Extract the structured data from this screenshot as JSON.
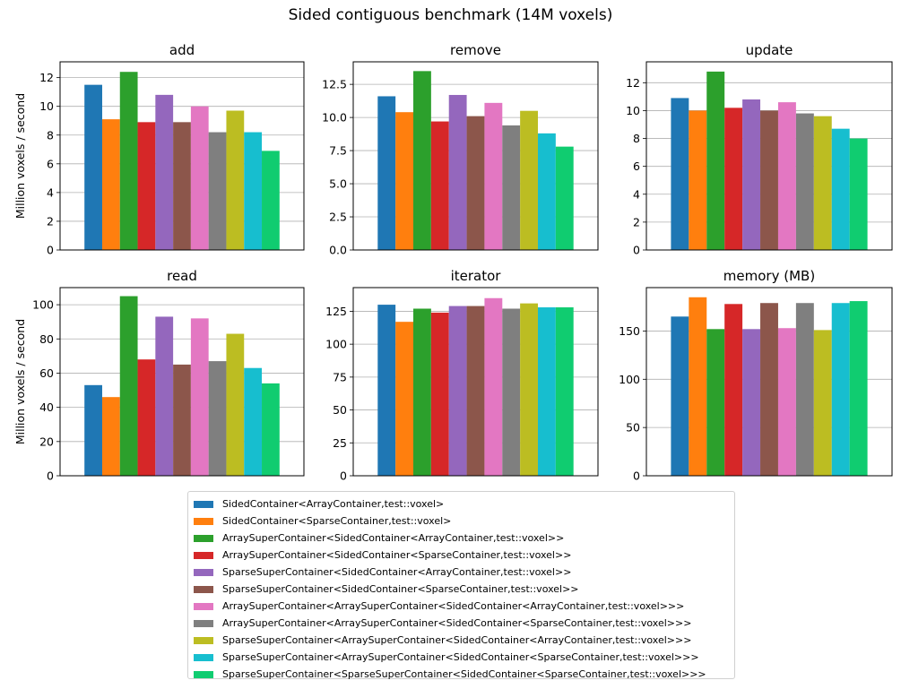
{
  "title": "Sided contiguous benchmark (14M voxels)",
  "series": [
    {
      "name": "SidedContainer<ArrayContainer,test::voxel>",
      "color": "#1f77b4"
    },
    {
      "name": "SidedContainer<SparseContainer,test::voxel>",
      "color": "#ff7f0e"
    },
    {
      "name": "ArraySuperContainer<SidedContainer<ArrayContainer,test::voxel>>",
      "color": "#2ca02c"
    },
    {
      "name": "ArraySuperContainer<SidedContainer<SparseContainer,test::voxel>>",
      "color": "#d62728"
    },
    {
      "name": "SparseSuperContainer<SidedContainer<ArrayContainer,test::voxel>>",
      "color": "#9467bd"
    },
    {
      "name": "SparseSuperContainer<SidedContainer<SparseContainer,test::voxel>>",
      "color": "#8c564b"
    },
    {
      "name": "ArraySuperContainer<ArraySuperContainer<SidedContainer<ArrayContainer,test::voxel>>>",
      "color": "#e377c2"
    },
    {
      "name": "ArraySuperContainer<ArraySuperContainer<SidedContainer<SparseContainer,test::voxel>>>",
      "color": "#7f7f7f"
    },
    {
      "name": "SparseSuperContainer<ArraySuperContainer<SidedContainer<ArrayContainer,test::voxel>>>",
      "color": "#bcbd22"
    },
    {
      "name": "SparseSuperContainer<ArraySuperContainer<SidedContainer<SparseContainer,test::voxel>>>",
      "color": "#17becf"
    },
    {
      "name": "SparseSuperContainer<SparseSuperContainer<SidedContainer<SparseContainer,test::voxel>>>",
      "color": "#10cc70"
    }
  ],
  "chart_data": [
    {
      "type": "bar",
      "title": "add",
      "ylabel": "Million voxels / second",
      "ylim": [
        0,
        13.1
      ],
      "yticks": [
        0,
        2,
        4,
        6,
        8,
        10,
        12
      ],
      "tick_labels": [
        "0",
        "2",
        "4",
        "6",
        "8",
        "10",
        "12"
      ],
      "grid": true,
      "values": [
        11.5,
        9.1,
        12.4,
        8.9,
        10.8,
        8.9,
        10.0,
        8.2,
        9.7,
        8.2,
        6.9
      ]
    },
    {
      "type": "bar",
      "title": "remove",
      "ylabel": "",
      "ylim": [
        0,
        14.2
      ],
      "yticks": [
        0,
        2.5,
        5,
        7.5,
        10,
        12.5
      ],
      "tick_labels": [
        "0.0",
        "2.5",
        "5.0",
        "7.5",
        "10.0",
        "12.5"
      ],
      "grid": true,
      "values": [
        11.6,
        10.4,
        13.5,
        9.7,
        11.7,
        10.1,
        11.1,
        9.4,
        10.5,
        8.8,
        7.8
      ]
    },
    {
      "type": "bar",
      "title": "update",
      "ylabel": "",
      "ylim": [
        0,
        13.5
      ],
      "yticks": [
        0,
        2,
        4,
        6,
        8,
        10,
        12
      ],
      "tick_labels": [
        "0",
        "2",
        "4",
        "6",
        "8",
        "10",
        "12"
      ],
      "grid": true,
      "values": [
        10.9,
        10.0,
        12.8,
        10.2,
        10.8,
        10.0,
        10.6,
        9.8,
        9.6,
        8.7,
        8.0
      ]
    },
    {
      "type": "bar",
      "title": "read",
      "ylabel": "Million voxels / second",
      "ylim": [
        0,
        110
      ],
      "yticks": [
        0,
        20,
        40,
        60,
        80,
        100
      ],
      "tick_labels": [
        "0",
        "20",
        "40",
        "60",
        "80",
        "100"
      ],
      "grid": true,
      "values": [
        53,
        46,
        105,
        68,
        93,
        65,
        92,
        67,
        83,
        63,
        54
      ]
    },
    {
      "type": "bar",
      "title": "iterator",
      "ylabel": "",
      "ylim": [
        0,
        143
      ],
      "yticks": [
        0,
        25,
        50,
        75,
        100,
        125
      ],
      "tick_labels": [
        "0",
        "25",
        "50",
        "75",
        "100",
        "125"
      ],
      "grid": true,
      "values": [
        130,
        117,
        127,
        124,
        129,
        129,
        135,
        127,
        131,
        128,
        128
      ]
    },
    {
      "type": "bar",
      "title": "memory (MB)",
      "ylabel": "",
      "ylim": [
        0,
        195
      ],
      "yticks": [
        0,
        50,
        100,
        150
      ],
      "tick_labels": [
        "0",
        "50",
        "100",
        "150"
      ],
      "grid": true,
      "values": [
        165,
        185,
        152,
        178,
        152,
        179,
        153,
        179,
        151,
        179,
        181
      ]
    }
  ]
}
